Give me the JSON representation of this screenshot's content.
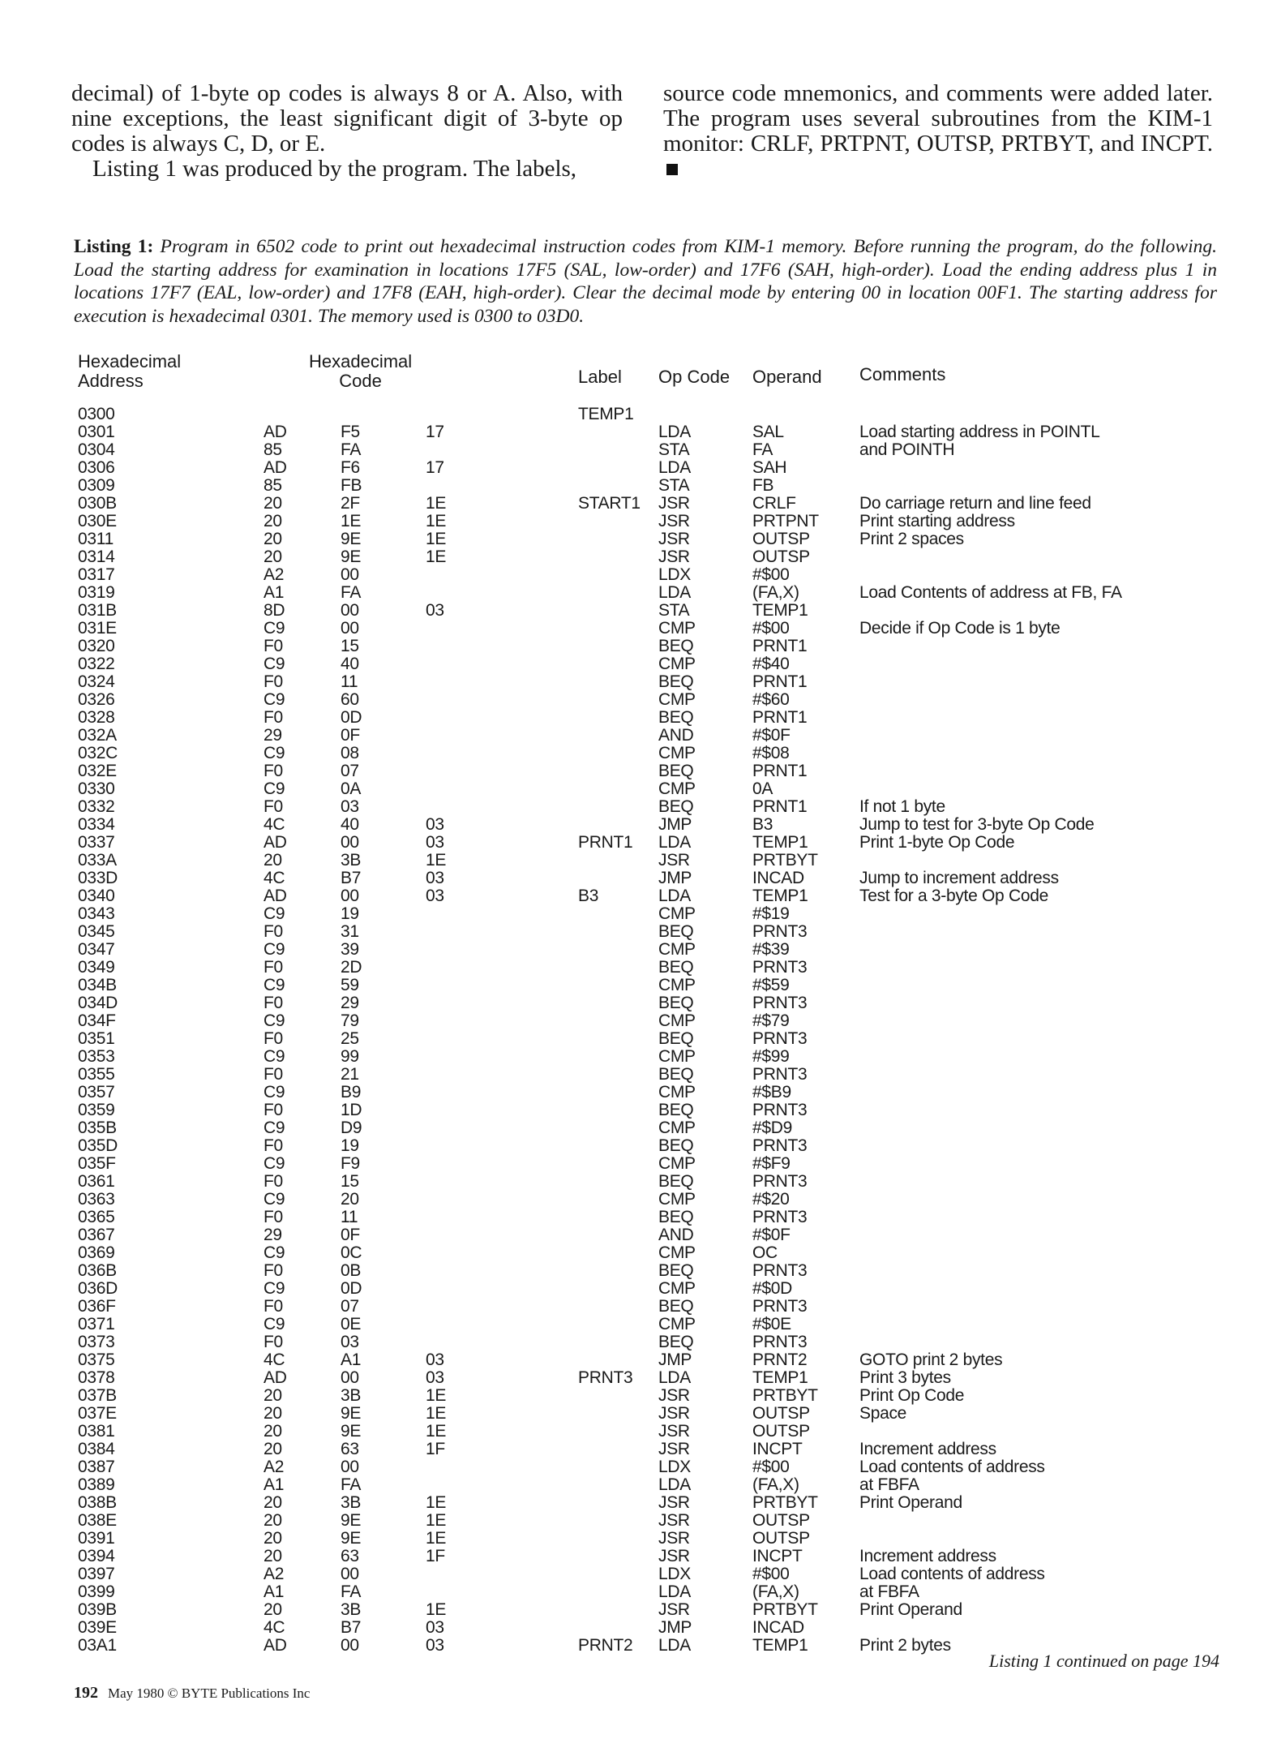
{
  "article": {
    "left_p1": "decimal) of 1-byte op codes is always 8 or A. Also, with nine exceptions, the least significant digit of 3-byte op codes is always C, D, or E.",
    "left_p2": "Listing 1 was produced by the program. The labels,",
    "right_p1": "source code mnemonics, and comments were added later. The program uses several subroutines from the KIM-1 monitor: CRLF, PRTPNT, OUTSP, PRTBYT, and INCPT."
  },
  "caption": {
    "label": "Listing 1:",
    "text": " Program in 6502 code to print out hexadecimal instruction codes from KIM-1 memory. Before running the program, do the following. Load the starting address for examination in locations 17F5 (SAL, low-order) and 17F6 (SAH, high-order). Load the ending address plus 1 in locations 17F7 (EAL, low-order) and 17F8 (EAH, high-order). Clear the decimal mode by entering 00 in location 00F1. The starting address for execution is hexadecimal 0301. The memory used is 0300 to 03D0."
  },
  "listing": {
    "headers": {
      "address_1": "Hexadecimal",
      "address_2": "Address",
      "code_1": "Hexadecimal",
      "code_2": "Code",
      "label": "Label",
      "opcode": "Op Code",
      "operand": "Operand",
      "comments": "Comments"
    },
    "rows": [
      [
        "0300",
        "",
        "",
        "",
        "TEMP1",
        "",
        "",
        ""
      ],
      [
        "0301",
        "AD",
        "F5",
        "17",
        "",
        "LDA",
        "SAL",
        "Load starting address in POINTL"
      ],
      [
        "0304",
        "85",
        "FA",
        "",
        "",
        "STA",
        "FA",
        "and POINTH"
      ],
      [
        "0306",
        "AD",
        "F6",
        "17",
        "",
        "LDA",
        "SAH",
        ""
      ],
      [
        "0309",
        "85",
        "FB",
        "",
        "",
        "STA",
        "FB",
        ""
      ],
      [
        "030B",
        "20",
        "2F",
        "1E",
        "START1",
        "JSR",
        "CRLF",
        "Do carriage return and line feed"
      ],
      [
        "030E",
        "20",
        "1E",
        "1E",
        "",
        "JSR",
        "PRTPNT",
        "Print starting address"
      ],
      [
        "0311",
        "20",
        "9E",
        "1E",
        "",
        "JSR",
        "OUTSP",
        "Print 2 spaces"
      ],
      [
        "0314",
        "20",
        "9E",
        "1E",
        "",
        "JSR",
        "OUTSP",
        ""
      ],
      [
        "0317",
        "A2",
        "00",
        "",
        "",
        "LDX",
        "#$00",
        ""
      ],
      [
        "0319",
        "A1",
        "FA",
        "",
        "",
        "LDA",
        "(FA,X)",
        "Load Contents of address at FB, FA"
      ],
      [
        "031B",
        "8D",
        "00",
        "03",
        "",
        "STA",
        "TEMP1",
        ""
      ],
      [
        "031E",
        "C9",
        "00",
        "",
        "",
        "CMP",
        "#$00",
        "Decide if Op Code is 1 byte"
      ],
      [
        "0320",
        "F0",
        "15",
        "",
        "",
        "BEQ",
        "PRNT1",
        ""
      ],
      [
        "0322",
        "C9",
        "40",
        "",
        "",
        "CMP",
        "#$40",
        ""
      ],
      [
        "0324",
        "F0",
        "11",
        "",
        "",
        "BEQ",
        "PRNT1",
        ""
      ],
      [
        "0326",
        "C9",
        "60",
        "",
        "",
        "CMP",
        "#$60",
        ""
      ],
      [
        "0328",
        "F0",
        "0D",
        "",
        "",
        "BEQ",
        "PRNT1",
        ""
      ],
      [
        "032A",
        "29",
        "0F",
        "",
        "",
        "AND",
        "#$0F",
        ""
      ],
      [
        "032C",
        "C9",
        "08",
        "",
        "",
        "CMP",
        "#$08",
        ""
      ],
      [
        "032E",
        "F0",
        "07",
        "",
        "",
        "BEQ",
        "PRNT1",
        ""
      ],
      [
        "0330",
        "C9",
        "0A",
        "",
        "",
        "CMP",
        "0A",
        ""
      ],
      [
        "0332",
        "F0",
        "03",
        "",
        "",
        "BEQ",
        "PRNT1",
        "If not 1 byte"
      ],
      [
        "0334",
        "4C",
        "40",
        "03",
        "",
        "JMP",
        "B3",
        "Jump to test for 3-byte Op Code"
      ],
      [
        "0337",
        "AD",
        "00",
        "03",
        "PRNT1",
        "LDA",
        "TEMP1",
        "Print 1-byte Op Code"
      ],
      [
        "033A",
        "20",
        "3B",
        "1E",
        "",
        "JSR",
        "PRTBYT",
        ""
      ],
      [
        "033D",
        "4C",
        "B7",
        "03",
        "",
        "JMP",
        "INCAD",
        "Jump to increment address"
      ],
      [
        "0340",
        "AD",
        "00",
        "03",
        "B3",
        "LDA",
        "TEMP1",
        "Test for a 3-byte Op Code"
      ],
      [
        "0343",
        "C9",
        "19",
        "",
        "",
        "CMP",
        "#$19",
        ""
      ],
      [
        "0345",
        "F0",
        "31",
        "",
        "",
        "BEQ",
        "PRNT3",
        ""
      ],
      [
        "0347",
        "C9",
        "39",
        "",
        "",
        "CMP",
        "#$39",
        ""
      ],
      [
        "0349",
        "F0",
        "2D",
        "",
        "",
        "BEQ",
        "PRNT3",
        ""
      ],
      [
        "034B",
        "C9",
        "59",
        "",
        "",
        "CMP",
        "#$59",
        ""
      ],
      [
        "034D",
        "F0",
        "29",
        "",
        "",
        "BEQ",
        "PRNT3",
        ""
      ],
      [
        "034F",
        "C9",
        "79",
        "",
        "",
        "CMP",
        "#$79",
        ""
      ],
      [
        "0351",
        "F0",
        "25",
        "",
        "",
        "BEQ",
        "PRNT3",
        ""
      ],
      [
        "0353",
        "C9",
        "99",
        "",
        "",
        "CMP",
        "#$99",
        ""
      ],
      [
        "0355",
        "F0",
        "21",
        "",
        "",
        "BEQ",
        "PRNT3",
        ""
      ],
      [
        "0357",
        "C9",
        "B9",
        "",
        "",
        "CMP",
        "#$B9",
        ""
      ],
      [
        "0359",
        "F0",
        "1D",
        "",
        "",
        "BEQ",
        "PRNT3",
        ""
      ],
      [
        "035B",
        "C9",
        "D9",
        "",
        "",
        "CMP",
        "#$D9",
        ""
      ],
      [
        "035D",
        "F0",
        "19",
        "",
        "",
        "BEQ",
        "PRNT3",
        ""
      ],
      [
        "035F",
        "C9",
        "F9",
        "",
        "",
        "CMP",
        "#$F9",
        ""
      ],
      [
        "0361",
        "F0",
        "15",
        "",
        "",
        "BEQ",
        "PRNT3",
        ""
      ],
      [
        "0363",
        "C9",
        "20",
        "",
        "",
        "CMP",
        "#$20",
        ""
      ],
      [
        "0365",
        "F0",
        "11",
        "",
        "",
        "BEQ",
        "PRNT3",
        ""
      ],
      [
        "0367",
        "29",
        "0F",
        "",
        "",
        "AND",
        "#$0F",
        ""
      ],
      [
        "0369",
        "C9",
        "0C",
        "",
        "",
        "CMP",
        "OC",
        ""
      ],
      [
        "036B",
        "F0",
        "0B",
        "",
        "",
        "BEQ",
        "PRNT3",
        ""
      ],
      [
        "036D",
        "C9",
        "0D",
        "",
        "",
        "CMP",
        "#$0D",
        ""
      ],
      [
        "036F",
        "F0",
        "07",
        "",
        "",
        "BEQ",
        "PRNT3",
        ""
      ],
      [
        "0371",
        "C9",
        "0E",
        "",
        "",
        "CMP",
        "#$0E",
        ""
      ],
      [
        "0373",
        "F0",
        "03",
        "",
        "",
        "BEQ",
        "PRNT3",
        ""
      ],
      [
        "0375",
        "4C",
        "A1",
        "03",
        "",
        "JMP",
        "PRNT2",
        "GOTO print 2 bytes"
      ],
      [
        "0378",
        "AD",
        "00",
        "03",
        "PRNT3",
        "LDA",
        "TEMP1",
        "Print 3 bytes"
      ],
      [
        "037B",
        "20",
        "3B",
        "1E",
        "",
        "JSR",
        "PRTBYT",
        "Print Op Code"
      ],
      [
        "037E",
        "20",
        "9E",
        "1E",
        "",
        "JSR",
        "OUTSP",
        "Space"
      ],
      [
        "0381",
        "20",
        "9E",
        "1E",
        "",
        "JSR",
        "OUTSP",
        ""
      ],
      [
        "0384",
        "20",
        "63",
        "1F",
        "",
        "JSR",
        "INCPT",
        "Increment address"
      ],
      [
        "0387",
        "A2",
        "00",
        "",
        "",
        "LDX",
        "#$00",
        "Load contents of address"
      ],
      [
        "0389",
        "A1",
        "FA",
        "",
        "",
        "LDA",
        "(FA,X)",
        "at FBFA"
      ],
      [
        "038B",
        "20",
        "3B",
        "1E",
        "",
        "JSR",
        "PRTBYT",
        "Print Operand"
      ],
      [
        "038E",
        "20",
        "9E",
        "1E",
        "",
        "JSR",
        "OUTSP",
        ""
      ],
      [
        "0391",
        "20",
        "9E",
        "1E",
        "",
        "JSR",
        "OUTSP",
        ""
      ],
      [
        "0394",
        "20",
        "63",
        "1F",
        "",
        "JSR",
        "INCPT",
        "Increment address"
      ],
      [
        "0397",
        "A2",
        "00",
        "",
        "",
        "LDX",
        "#$00",
        "Load contents of address"
      ],
      [
        "0399",
        "A1",
        "FA",
        "",
        "",
        "LDA",
        "(FA,X)",
        "at FBFA"
      ],
      [
        "039B",
        "20",
        "3B",
        "1E",
        "",
        "JSR",
        "PRTBYT",
        "Print Operand"
      ],
      [
        "039E",
        "4C",
        "B7",
        "03",
        "",
        "JMP",
        "INCAD",
        ""
      ],
      [
        "03A1",
        "AD",
        "00",
        "03",
        "PRNT2",
        "LDA",
        "TEMP1",
        "Print 2 bytes"
      ]
    ],
    "continued": "Listing 1 continued on page 194"
  },
  "footer": {
    "page_number": "192",
    "credit": "May 1980 © BYTE Publications Inc"
  }
}
